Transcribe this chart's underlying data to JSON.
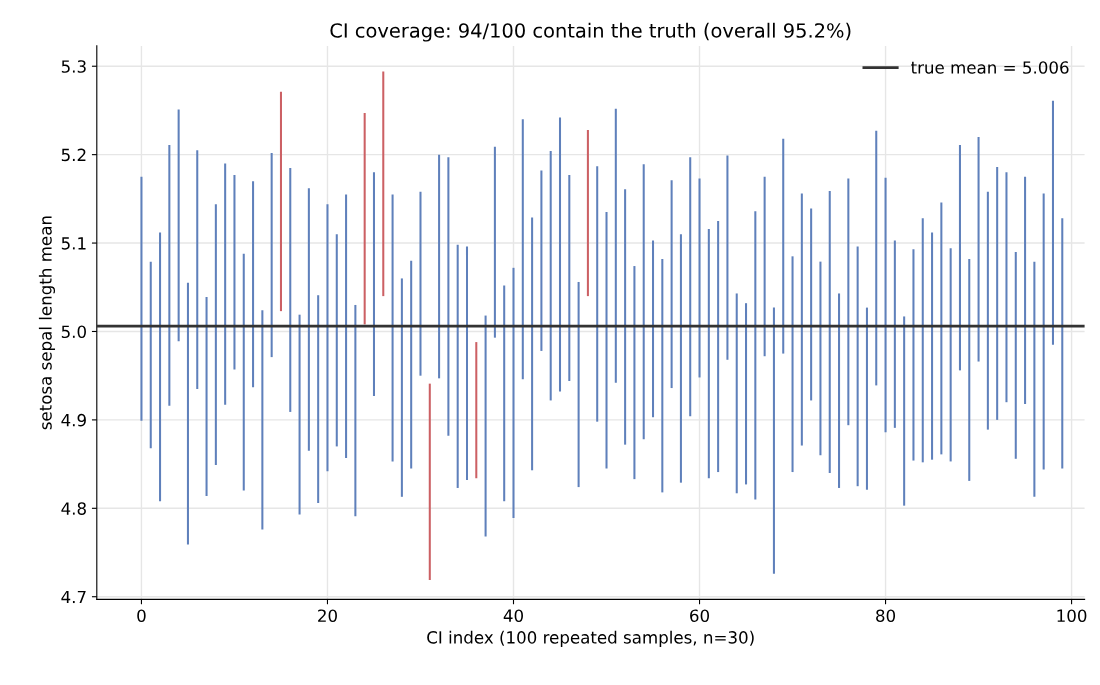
{
  "chart_data": {
    "type": "bar",
    "title": "CI coverage: 94/100 contain the truth (overall 95.2%)",
    "xlabel": "CI index (100 repeated samples, n=30)",
    "ylabel": "setosa sepal length mean",
    "x": [
      0,
      1,
      2,
      3,
      4,
      5,
      6,
      7,
      8,
      9,
      10,
      11,
      12,
      13,
      14,
      15,
      16,
      17,
      18,
      19,
      20,
      21,
      22,
      23,
      24,
      25,
      26,
      27,
      28,
      29,
      30,
      31,
      32,
      33,
      34,
      35,
      36,
      37,
      38,
      39,
      40,
      41,
      42,
      43,
      44,
      45,
      46,
      47,
      48,
      49,
      50,
      51,
      52,
      53,
      54,
      55,
      56,
      57,
      58,
      59,
      60,
      61,
      62,
      63,
      64,
      65,
      66,
      67,
      68,
      69,
      70,
      71,
      72,
      73,
      74,
      75,
      76,
      77,
      78,
      79,
      80,
      81,
      82,
      83,
      84,
      85,
      86,
      87,
      88,
      89,
      90,
      91,
      92,
      93,
      94,
      95,
      96,
      97,
      98,
      99
    ],
    "base": [
      4.899,
      4.868,
      4.808,
      4.916,
      4.989,
      4.759,
      4.935,
      4.814,
      4.849,
      4.917,
      4.957,
      4.82,
      4.937,
      4.776,
      4.971,
      5.023,
      4.909,
      4.793,
      4.865,
      4.806,
      4.842,
      4.87,
      4.857,
      4.791,
      5.008,
      4.927,
      5.04,
      4.853,
      4.813,
      4.845,
      4.95,
      4.719,
      4.947,
      4.882,
      4.823,
      4.832,
      4.834,
      4.768,
      4.993,
      4.808,
      4.789,
      4.946,
      4.843,
      4.978,
      4.922,
      4.932,
      4.944,
      4.824,
      5.04,
      4.898,
      4.845,
      4.942,
      4.872,
      4.833,
      4.878,
      4.903,
      4.818,
      4.936,
      4.829,
      4.904,
      4.948,
      4.834,
      4.841,
      4.968,
      4.817,
      4.827,
      4.81,
      4.972,
      4.726,
      4.975,
      4.841,
      4.871,
      4.922,
      4.86,
      4.84,
      4.823,
      4.894,
      4.825,
      4.821,
      4.939,
      4.886,
      4.891,
      4.803,
      4.854,
      4.852,
      4.855,
      4.861,
      4.853,
      4.956,
      4.831,
      4.966,
      4.889,
      4.9,
      4.92,
      4.856,
      4.918,
      4.813,
      4.844,
      4.985,
      4.845
    ],
    "values": [
      0.276,
      0.211,
      0.304,
      0.295,
      0.262,
      0.296,
      0.27,
      0.225,
      0.295,
      0.273,
      0.22,
      0.268,
      0.233,
      0.248,
      0.231,
      0.248,
      0.276,
      0.226,
      0.297,
      0.235,
      0.302,
      0.24,
      0.298,
      0.239,
      0.239,
      0.253,
      0.254,
      0.302,
      0.247,
      0.235,
      0.208,
      0.222,
      0.253,
      0.315,
      0.275,
      0.264,
      0.154,
      0.25,
      0.216,
      0.244,
      0.283,
      0.294,
      0.286,
      0.204,
      0.282,
      0.31,
      0.233,
      0.232,
      0.188,
      0.289,
      0.29,
      0.31,
      0.289,
      0.241,
      0.311,
      0.2,
      0.264,
      0.235,
      0.281,
      0.293,
      0.225,
      0.282,
      0.284,
      0.231,
      0.226,
      0.205,
      0.326,
      0.203,
      0.301,
      0.243,
      0.244,
      0.285,
      0.217,
      0.219,
      0.319,
      0.22,
      0.279,
      0.271,
      0.206,
      0.288,
      0.288,
      0.212,
      0.214,
      0.239,
      0.276,
      0.257,
      0.285,
      0.241,
      0.255,
      0.251,
      0.254,
      0.269,
      0.286,
      0.26,
      0.234,
      0.257,
      0.266,
      0.312,
      0.276,
      0.283
    ],
    "colors": [
      "#5f80bb",
      "#5f80bb",
      "#5f80bb",
      "#5f80bb",
      "#5f80bb",
      "#5f80bb",
      "#5f80bb",
      "#5f80bb",
      "#5f80bb",
      "#5f80bb",
      "#5f80bb",
      "#5f80bb",
      "#5f80bb",
      "#5f80bb",
      "#5f80bb",
      "#cc6064",
      "#5f80bb",
      "#5f80bb",
      "#5f80bb",
      "#5f80bb",
      "#5f80bb",
      "#5f80bb",
      "#5f80bb",
      "#5f80bb",
      "#cc6064",
      "#5f80bb",
      "#cc6064",
      "#5f80bb",
      "#5f80bb",
      "#5f80bb",
      "#5f80bb",
      "#cc6064",
      "#5f80bb",
      "#5f80bb",
      "#5f80bb",
      "#5f80bb",
      "#cc6064",
      "#5f80bb",
      "#5f80bb",
      "#5f80bb",
      "#5f80bb",
      "#5f80bb",
      "#5f80bb",
      "#5f80bb",
      "#5f80bb",
      "#5f80bb",
      "#5f80bb",
      "#5f80bb",
      "#cc6064",
      "#5f80bb",
      "#5f80bb",
      "#5f80bb",
      "#5f80bb",
      "#5f80bb",
      "#5f80bb",
      "#5f80bb",
      "#5f80bb",
      "#5f80bb",
      "#5f80bb",
      "#5f80bb",
      "#5f80bb",
      "#5f80bb",
      "#5f80bb",
      "#5f80bb",
      "#5f80bb",
      "#5f80bb",
      "#5f80bb",
      "#5f80bb",
      "#5f80bb",
      "#5f80bb",
      "#5f80bb",
      "#5f80bb",
      "#5f80bb",
      "#5f80bb",
      "#5f80bb",
      "#5f80bb",
      "#5f80bb",
      "#5f80bb",
      "#5f80bb",
      "#5f80bb",
      "#5f80bb",
      "#5f80bb",
      "#5f80bb",
      "#5f80bb",
      "#5f80bb",
      "#5f80bb",
      "#5f80bb",
      "#5f80bb",
      "#5f80bb",
      "#5f80bb",
      "#5f80bb",
      "#5f80bb",
      "#5f80bb",
      "#5f80bb",
      "#5f80bb",
      "#5f80bb",
      "#5f80bb",
      "#5f80bb",
      "#5f80bb",
      "#5f80bb"
    ],
    "ref_lines": [
      {
        "axis": "y",
        "value": 5.006,
        "label": "true mean = 5.006",
        "color": "#333333"
      }
    ],
    "xlim": [
      -4.8,
      101.4
    ],
    "xticks": [
      0,
      20,
      40,
      60,
      80,
      100
    ],
    "ylim": [
      4.697,
      5.323
    ],
    "yticks": [
      4.7,
      4.8,
      4.9,
      {
        "value": 5,
        "label": "5.0"
      },
      5.1,
      5.2,
      5.3
    ],
    "grid": true,
    "legend": "top right"
  }
}
